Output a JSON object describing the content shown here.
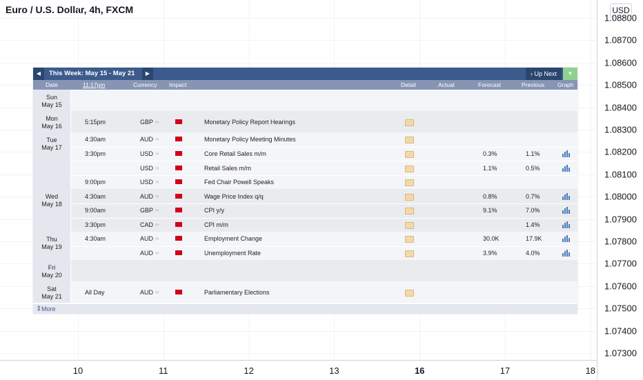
{
  "chart": {
    "title": "Euro / U.S. Dollar, 4h, FXCM",
    "currency": "USD",
    "price_labels": [
      "1.08800",
      "1.08700",
      "1.08600",
      "1.08500",
      "1.08400",
      "1.08300",
      "1.08200",
      "1.08100",
      "1.08000",
      "1.07900",
      "1.07800",
      "1.07700",
      "1.07600",
      "1.07500",
      "1.07400",
      "1.07300"
    ],
    "time_labels": [
      {
        "label": "10",
        "bold": false
      },
      {
        "label": "11",
        "bold": false
      },
      {
        "label": "12",
        "bold": false
      },
      {
        "label": "13",
        "bold": false
      },
      {
        "label": "16",
        "bold": true
      },
      {
        "label": "17",
        "bold": false
      },
      {
        "label": "18",
        "bold": false
      }
    ]
  },
  "calendar": {
    "week_label": "This Week: May 15 - May 21",
    "up_next_label": "Up Next",
    "headers": {
      "date": "Date",
      "time": "11:17pm",
      "currency": "Currency",
      "impact": "Impact",
      "detail": "Detail",
      "actual": "Actual",
      "forecast": "Forecast",
      "previous": "Previous",
      "graph": "Graph"
    },
    "more_label": "More",
    "impact_color": "#d0021b",
    "days": [
      {
        "dow": "Sun",
        "date": "May 15",
        "events": []
      },
      {
        "dow": "Mon",
        "date": "May 16",
        "events": [
          {
            "time": "5:15pm",
            "currency": "GBP",
            "event": "Monetary Policy Report Hearings",
            "forecast": "",
            "previous": "",
            "graph": false
          }
        ]
      },
      {
        "dow": "Tue",
        "date": "May 17",
        "events": [
          {
            "time": "4:30am",
            "currency": "AUD",
            "event": "Monetary Policy Meeting Minutes",
            "forecast": "",
            "previous": "",
            "graph": false
          },
          {
            "time": "3:30pm",
            "currency": "USD",
            "event": "Core Retail Sales m/m",
            "forecast": "0.3%",
            "previous": "1.1%",
            "graph": true
          },
          {
            "time": "",
            "currency": "USD",
            "event": "Retail Sales m/m",
            "forecast": "1.1%",
            "previous": "0.5%",
            "graph": true
          },
          {
            "time": "9:00pm",
            "currency": "USD",
            "event": "Fed Chair Powell Speaks",
            "forecast": "",
            "previous": "",
            "graph": false
          }
        ]
      },
      {
        "dow": "Wed",
        "date": "May 18",
        "events": [
          {
            "time": "4:30am",
            "currency": "AUD",
            "event": "Wage Price Index q/q",
            "forecast": "0.8%",
            "previous": "0.7%",
            "graph": true
          },
          {
            "time": "9:00am",
            "currency": "GBP",
            "event": "CPI y/y",
            "forecast": "9.1%",
            "previous": "7.0%",
            "graph": true
          },
          {
            "time": "3:30pm",
            "currency": "CAD",
            "event": "CPI m/m",
            "forecast": "",
            "previous": "1.4%",
            "graph": true
          }
        ]
      },
      {
        "dow": "Thu",
        "date": "May 19",
        "events": [
          {
            "time": "4:30am",
            "currency": "AUD",
            "event": "Employment Change",
            "forecast": "30.0K",
            "previous": "17.9K",
            "graph": true
          },
          {
            "time": "",
            "currency": "AUD",
            "event": "Unemployment Rate",
            "forecast": "3.9%",
            "previous": "4.0%",
            "graph": true
          }
        ]
      },
      {
        "dow": "Fri",
        "date": "May 20",
        "events": []
      },
      {
        "dow": "Sat",
        "date": "May 21",
        "events": [
          {
            "time": "All Day",
            "currency": "AUD",
            "event": "Parliamentary Elections",
            "forecast": "",
            "previous": "",
            "graph": false
          }
        ]
      }
    ]
  }
}
